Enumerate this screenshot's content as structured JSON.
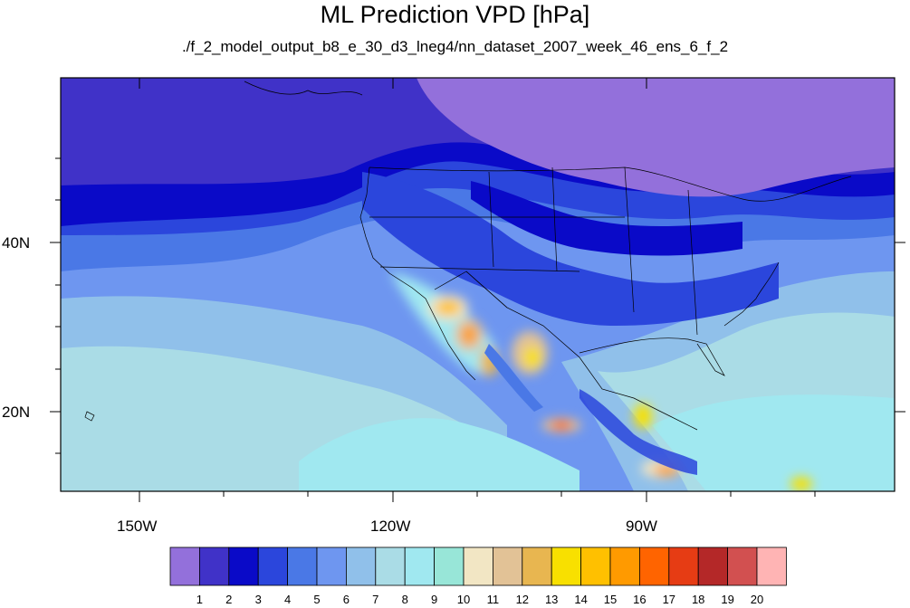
{
  "title": "ML Prediction VPD [hPa]",
  "subtitle": "./f_2_model_output_b8_e_30_d3_lneg4/nn_dataset_2007_week_46_ens_6_f_2",
  "lat_labels": [
    "40N",
    "20N"
  ],
  "lon_labels": [
    "150W",
    "120W",
    "90W"
  ],
  "colorbar": {
    "labels": [
      "1",
      "2",
      "3",
      "4",
      "5",
      "6",
      "7",
      "8",
      "9",
      "10",
      "11",
      "12",
      "13",
      "14",
      "15",
      "16",
      "17",
      "18",
      "19",
      "20"
    ],
    "colors": [
      "#9370db",
      "#4032c8",
      "#0a0ac8",
      "#2b46dc",
      "#4a78e6",
      "#6e96f0",
      "#90c0ea",
      "#aadce6",
      "#a0e8f0",
      "#98e6d8",
      "#f2e6c4",
      "#e2c296",
      "#e8b650",
      "#f8e000",
      "#ffc000",
      "#ff9a00",
      "#ff6400",
      "#e63c14",
      "#b42828",
      "#d25050",
      "#ffb4b4"
    ]
  }
}
